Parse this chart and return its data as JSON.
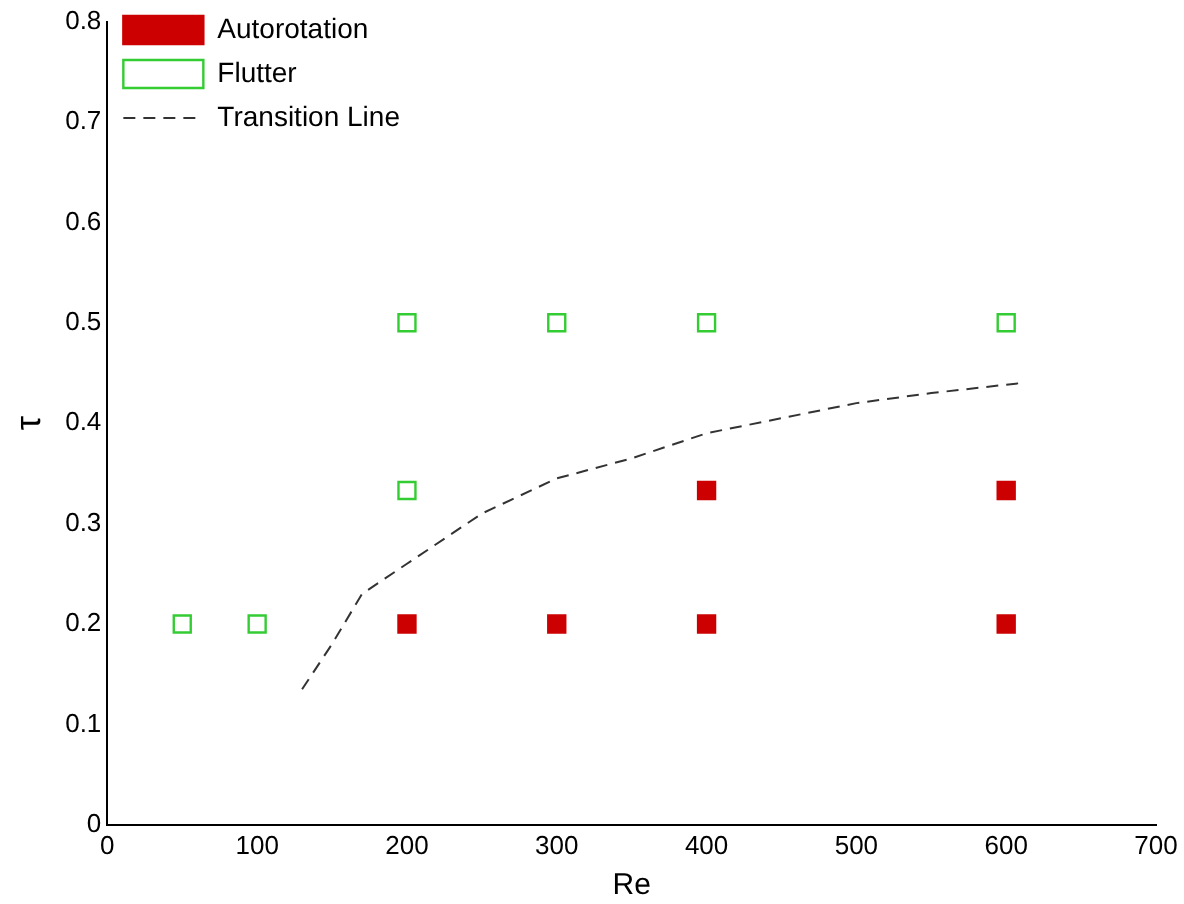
{
  "chart_data": {
    "type": "scatter",
    "xlabel": "Re",
    "ylabel": "τ",
    "xlim": [
      0,
      700
    ],
    "ylim": [
      0,
      0.8
    ],
    "xticks": [
      0,
      100,
      200,
      300,
      400,
      500,
      600,
      700
    ],
    "yticks": [
      0,
      0.1,
      0.2,
      0.3,
      0.4,
      0.5,
      0.6,
      0.7,
      0.8
    ],
    "grid": false,
    "legend": "top left",
    "series": [
      {
        "name": "Autorotation",
        "color": "#cc0000",
        "marker": "square",
        "x": [
          200,
          300,
          400,
          600,
          400,
          600
        ],
        "values": [
          0.2,
          0.2,
          0.2,
          0.2,
          0.333,
          0.333
        ]
      },
      {
        "name": "Flutter",
        "color": "#33cc33",
        "marker": "square",
        "x": [
          50,
          100,
          200,
          200,
          300,
          400,
          600
        ],
        "values": [
          0.2,
          0.2,
          0.333,
          0.5,
          0.5,
          0.5,
          0.5
        ]
      },
      {
        "name": "Transition Line",
        "type": "line",
        "color": "#333333",
        "line_style": "dashed",
        "marker": "none",
        "x": [
          130,
          150,
          170,
          200,
          250,
          300,
          350,
          400,
          450,
          500,
          550,
          610
        ],
        "values": [
          0.135,
          0.18,
          0.23,
          0.26,
          0.31,
          0.345,
          0.365,
          0.39,
          0.405,
          0.42,
          0.43,
          0.44
        ]
      }
    ]
  }
}
